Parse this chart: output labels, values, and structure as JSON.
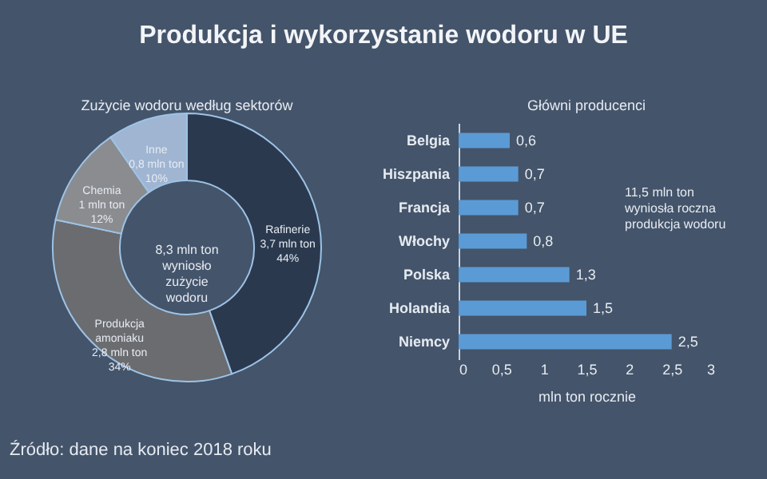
{
  "chart_data": [
    {
      "type": "donut",
      "title": "Produkcja i wykorzystanie wodoru w UE",
      "subtitle": "Zużycie wodoru według sektorów",
      "categories": [
        "Rafinerie",
        "Produkcja\namoniaku",
        "Chemia",
        "Inne"
      ],
      "values": [
        3.7,
        2.8,
        1,
        0.8
      ],
      "value_labels": [
        "3,7 mln ton\n44%",
        "2,8 mln ton\n34%",
        "1 mln ton\n12%",
        "0,8 mln ton\n10%"
      ],
      "colors": [
        "#2b394f",
        "#6a6c70",
        "#8a8c90",
        "#9fb5d2"
      ],
      "annotations": [
        "8,3 mln ton\nwyniosło\nzużycie\nwodoru",
        "Źródło: dane na koniec 2018 roku"
      ]
    },
    {
      "type": "bar",
      "orientation": "horizontal",
      "title": "Główni producenci",
      "xlabel": "mln ton rocznie",
      "categories": [
        "Belgia",
        "Hiszpania",
        "Francja",
        "Włochy",
        "Polska",
        "Holandia",
        "Niemcy"
      ],
      "values": [
        0.6,
        0.7,
        0.7,
        0.8,
        1.3,
        1.5,
        2.5
      ],
      "value_labels": [
        "0,6",
        "0,7",
        "0,7",
        "0,8",
        "1,3",
        "1,5",
        "2,5"
      ],
      "color": "#5b9bd5",
      "xlim": [
        0,
        3
      ],
      "xticks": [
        0,
        {
          "value": 0.5,
          "label": "0,5"
        },
        1,
        {
          "value": 1.5,
          "label": "1,5"
        },
        2,
        {
          "value": 2.5,
          "label": "2,5"
        },
        3
      ],
      "grid": false,
      "annotations": [
        "11,5 mln ton\nwyniosła roczna\nprodukcja wodoru"
      ]
    }
  ]
}
